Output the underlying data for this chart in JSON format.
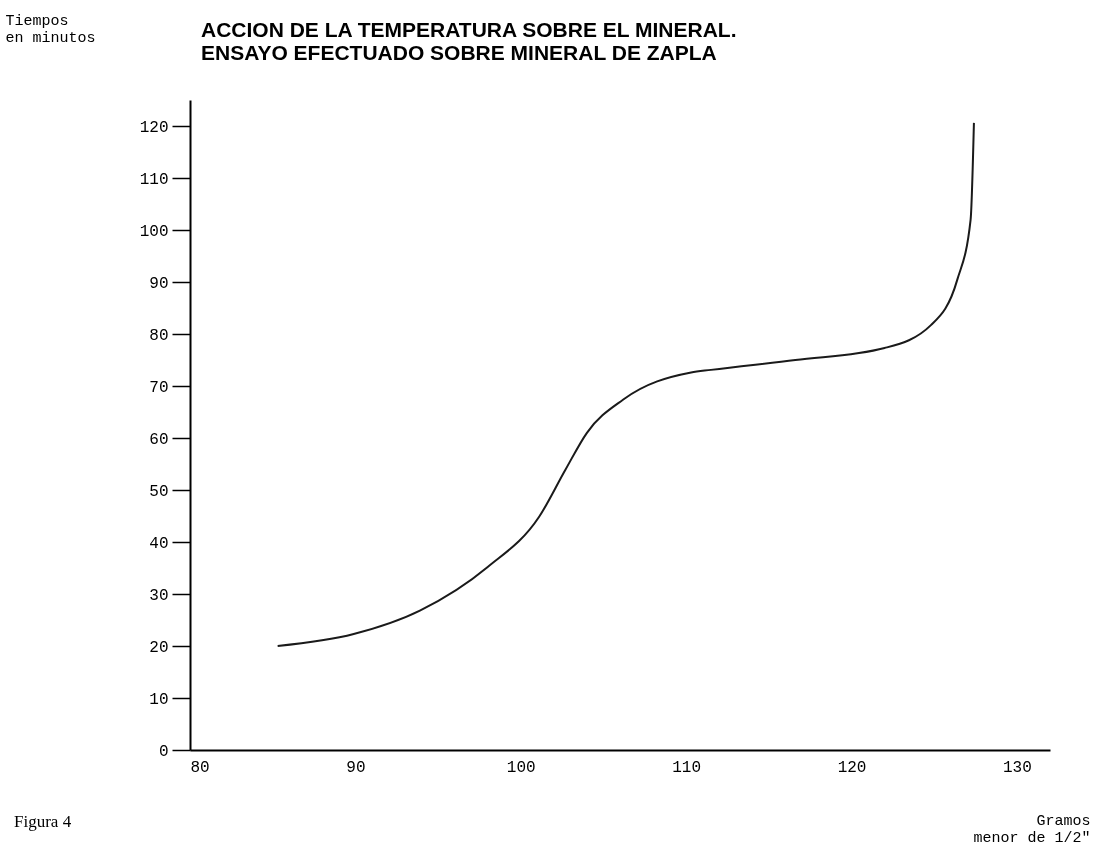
{
  "chart_data": {
    "type": "line",
    "title": "ACCION DE LA TEMPERATURA SOBRE EL MINERAL.\nENSAYO EFECTUADO SOBRE MINERAL DE ZAPLA",
    "xlabel": "Gramos\nmenor de 1/2\"",
    "ylabel": "Tiempos\nen minutos",
    "annotations": [
      "Figura 4"
    ],
    "x": [
      85.3,
      89.9,
      93.9,
      98.0,
      101.1,
      102.7,
      104.0,
      106.2,
      110.3,
      111.5,
      116.6,
      122.0,
      124.8,
      126.4,
      127.2,
      127.4
    ],
    "series": [
      {
        "color": "#1a1a1a",
        "values": [
          20,
          22.3,
          26.8,
          35.2,
          44.8,
          53.9,
          61.0,
          67.4,
          72.6,
          73.1,
          75.0,
          77.3,
          81.7,
          90.5,
          102.0,
          120.6
        ]
      }
    ],
    "xlim": [
      80,
      132
    ],
    "xticks": [
      80,
      90,
      100,
      110,
      120,
      130
    ],
    "ylim": [
      0,
      125
    ],
    "yticks": [
      0,
      10,
      20,
      30,
      40,
      50,
      60,
      70,
      80,
      90,
      100,
      110,
      120
    ],
    "grid": false,
    "marker": "none",
    "line_style": "solid"
  }
}
